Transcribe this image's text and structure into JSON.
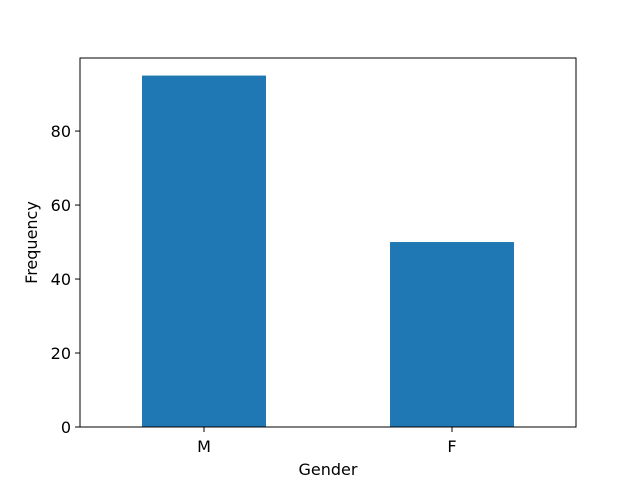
{
  "chart_data": {
    "type": "bar",
    "categories": [
      "M",
      "F"
    ],
    "values": [
      95,
      50
    ],
    "title": "",
    "xlabel": "Gender",
    "ylabel": "Frequency",
    "ylim": [
      0,
      99.75
    ],
    "yticks": [
      0,
      20,
      40,
      60,
      80
    ],
    "grid": false,
    "bar_color": "#1f77b4"
  }
}
